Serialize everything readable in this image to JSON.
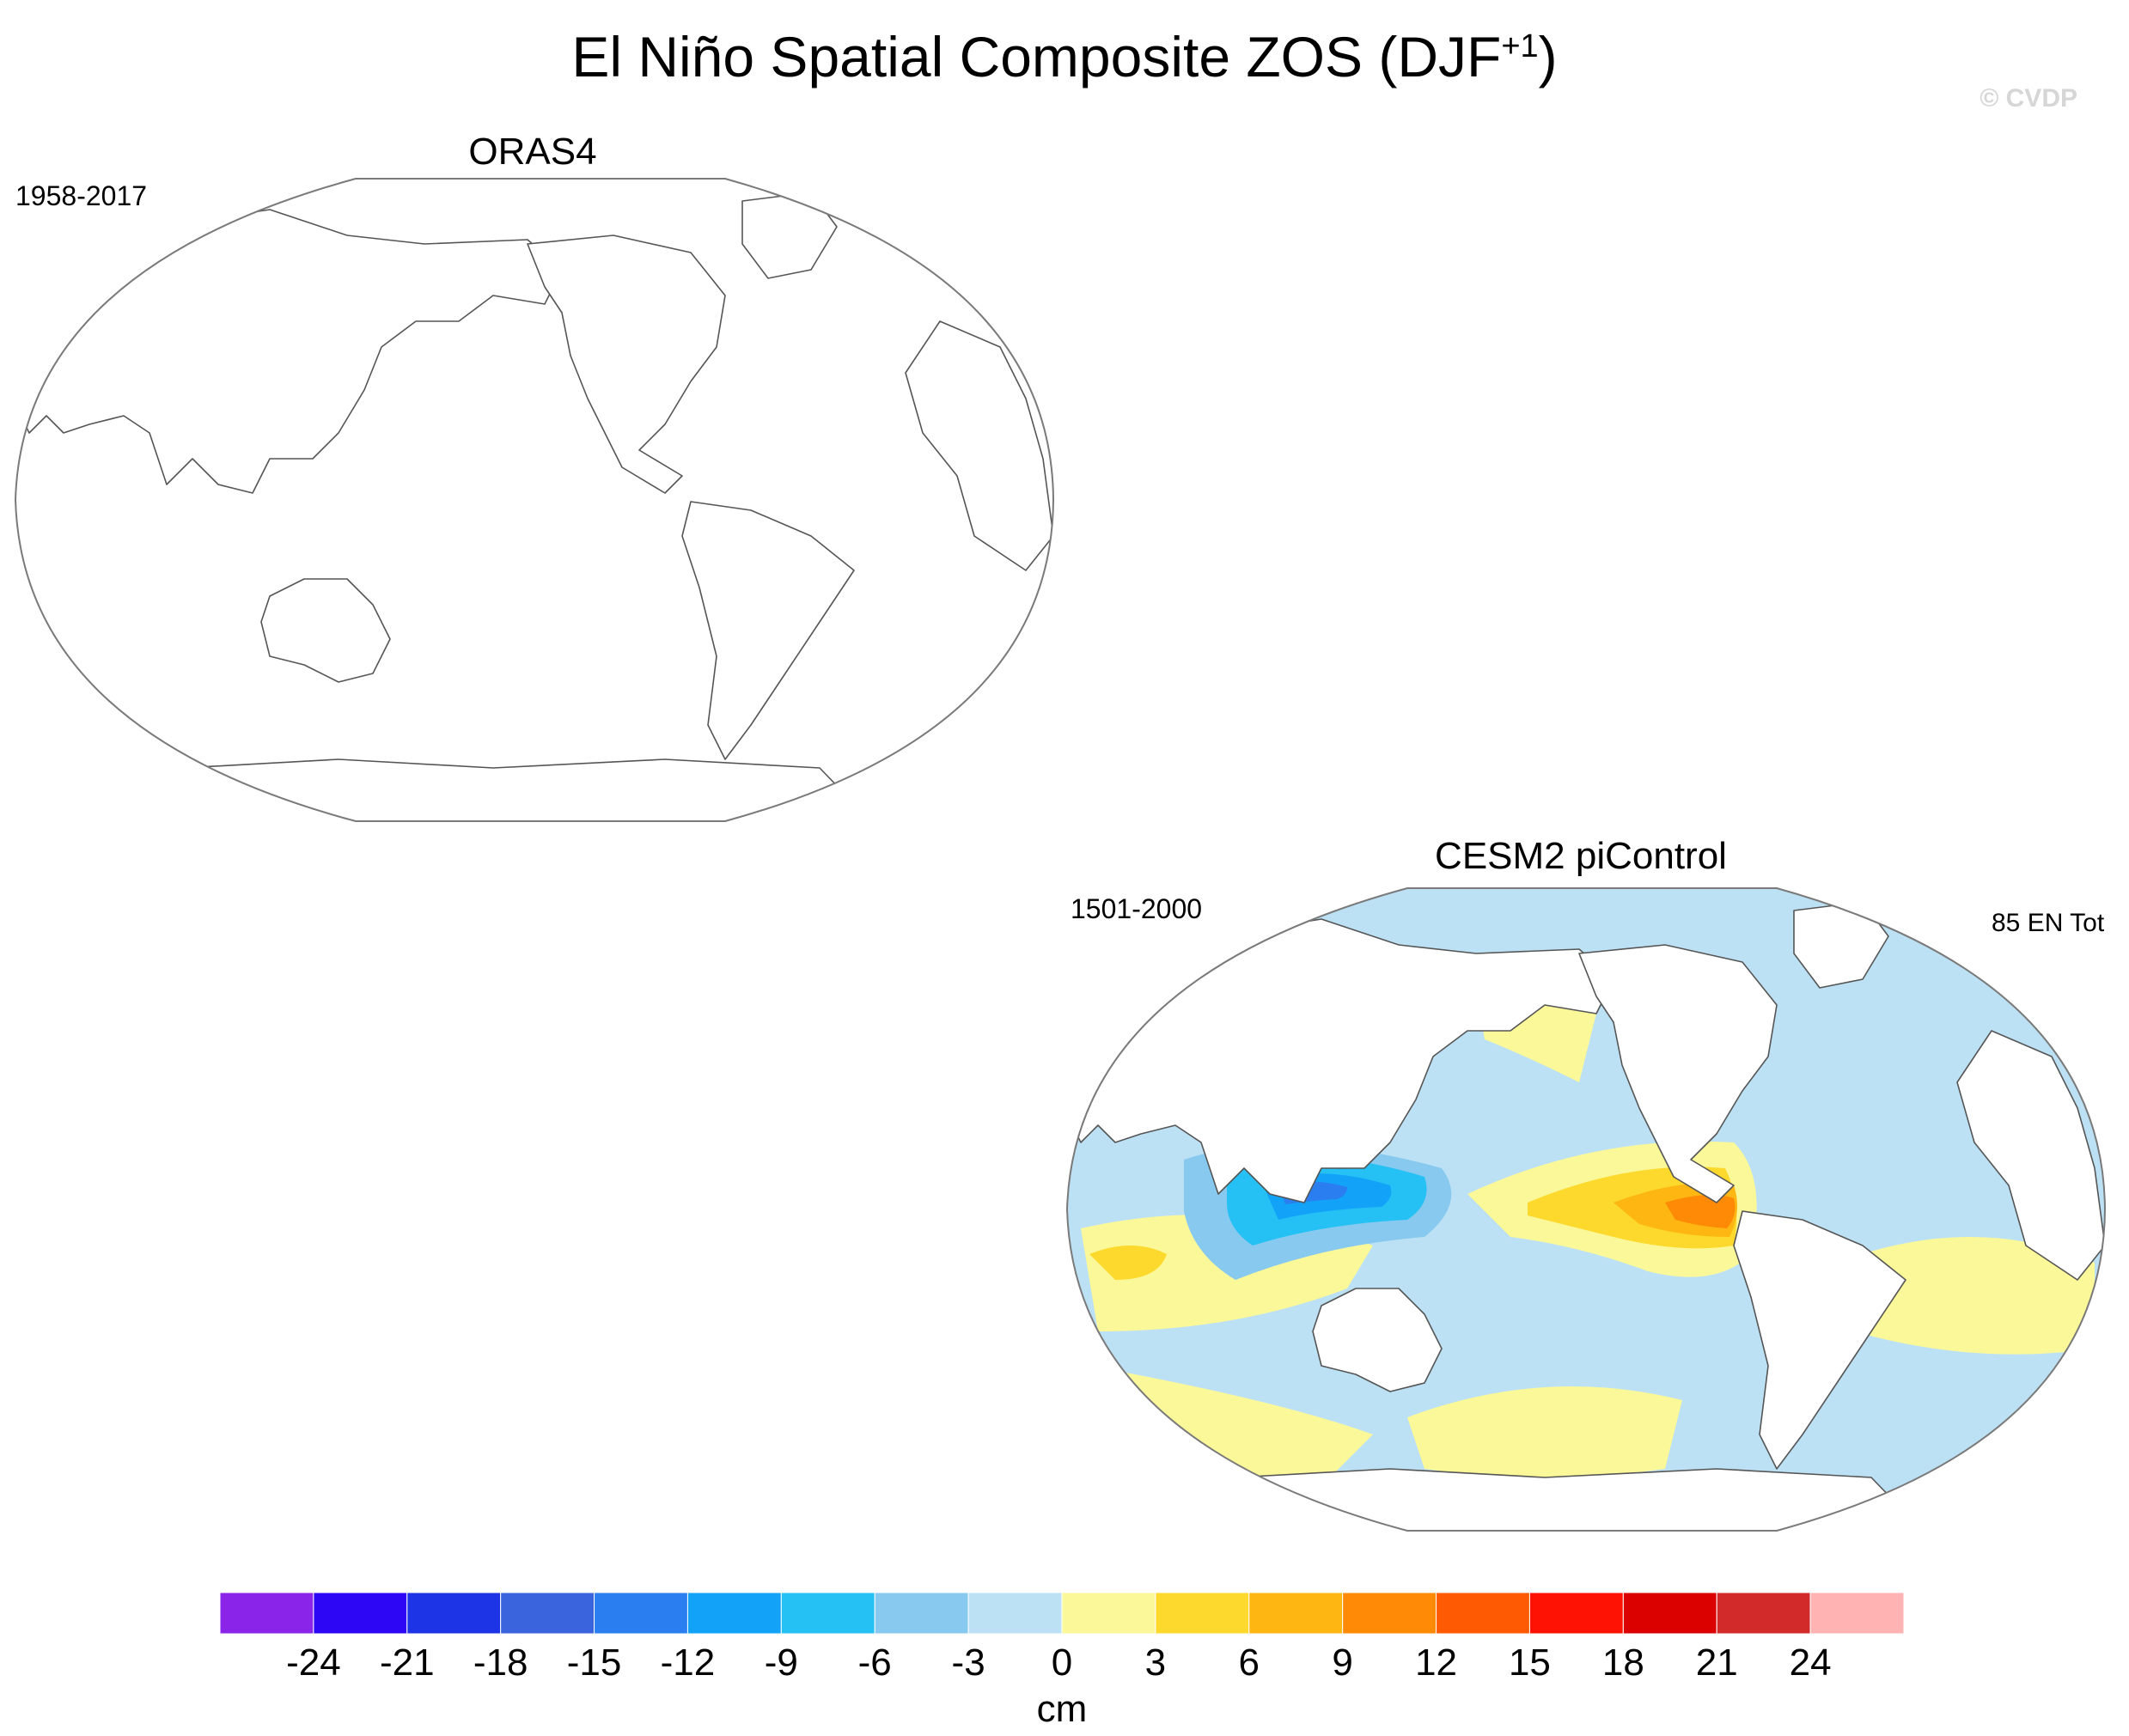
{
  "figure": {
    "title": "El Niño Spatial Composite ZOS (DJF",
    "title_sup": "+1",
    "title_end": ")",
    "credit": "© CVDP"
  },
  "panels": [
    {
      "title": "ORAS4",
      "period": "1958-2017",
      "count": "",
      "field": "blank"
    },
    {
      "title": "CESM2 piControl",
      "period": "1501-2000",
      "count": "85 EN Tot",
      "field": "El Niño sea-level composite"
    }
  ],
  "colorbar": {
    "units": "cm",
    "levels": [
      "-24",
      "-21",
      "-18",
      "-15",
      "-12",
      "-9",
      "-6",
      "-3",
      "0",
      "3",
      "6",
      "9",
      "12",
      "15",
      "18",
      "21",
      "24"
    ],
    "colors": [
      "#8a24e8",
      "#2d07f5",
      "#1d33e6",
      "#3a63de",
      "#2a7ef0",
      "#12a3f8",
      "#25c1f5",
      "#88c9ef",
      "#bde1f4",
      "#fbf89a",
      "#fdd92d",
      "#fdb612",
      "#fe8a06",
      "#fd5a03",
      "#fd1204",
      "#dc0101",
      "#d22a2a",
      "#ffb3b3"
    ]
  }
}
